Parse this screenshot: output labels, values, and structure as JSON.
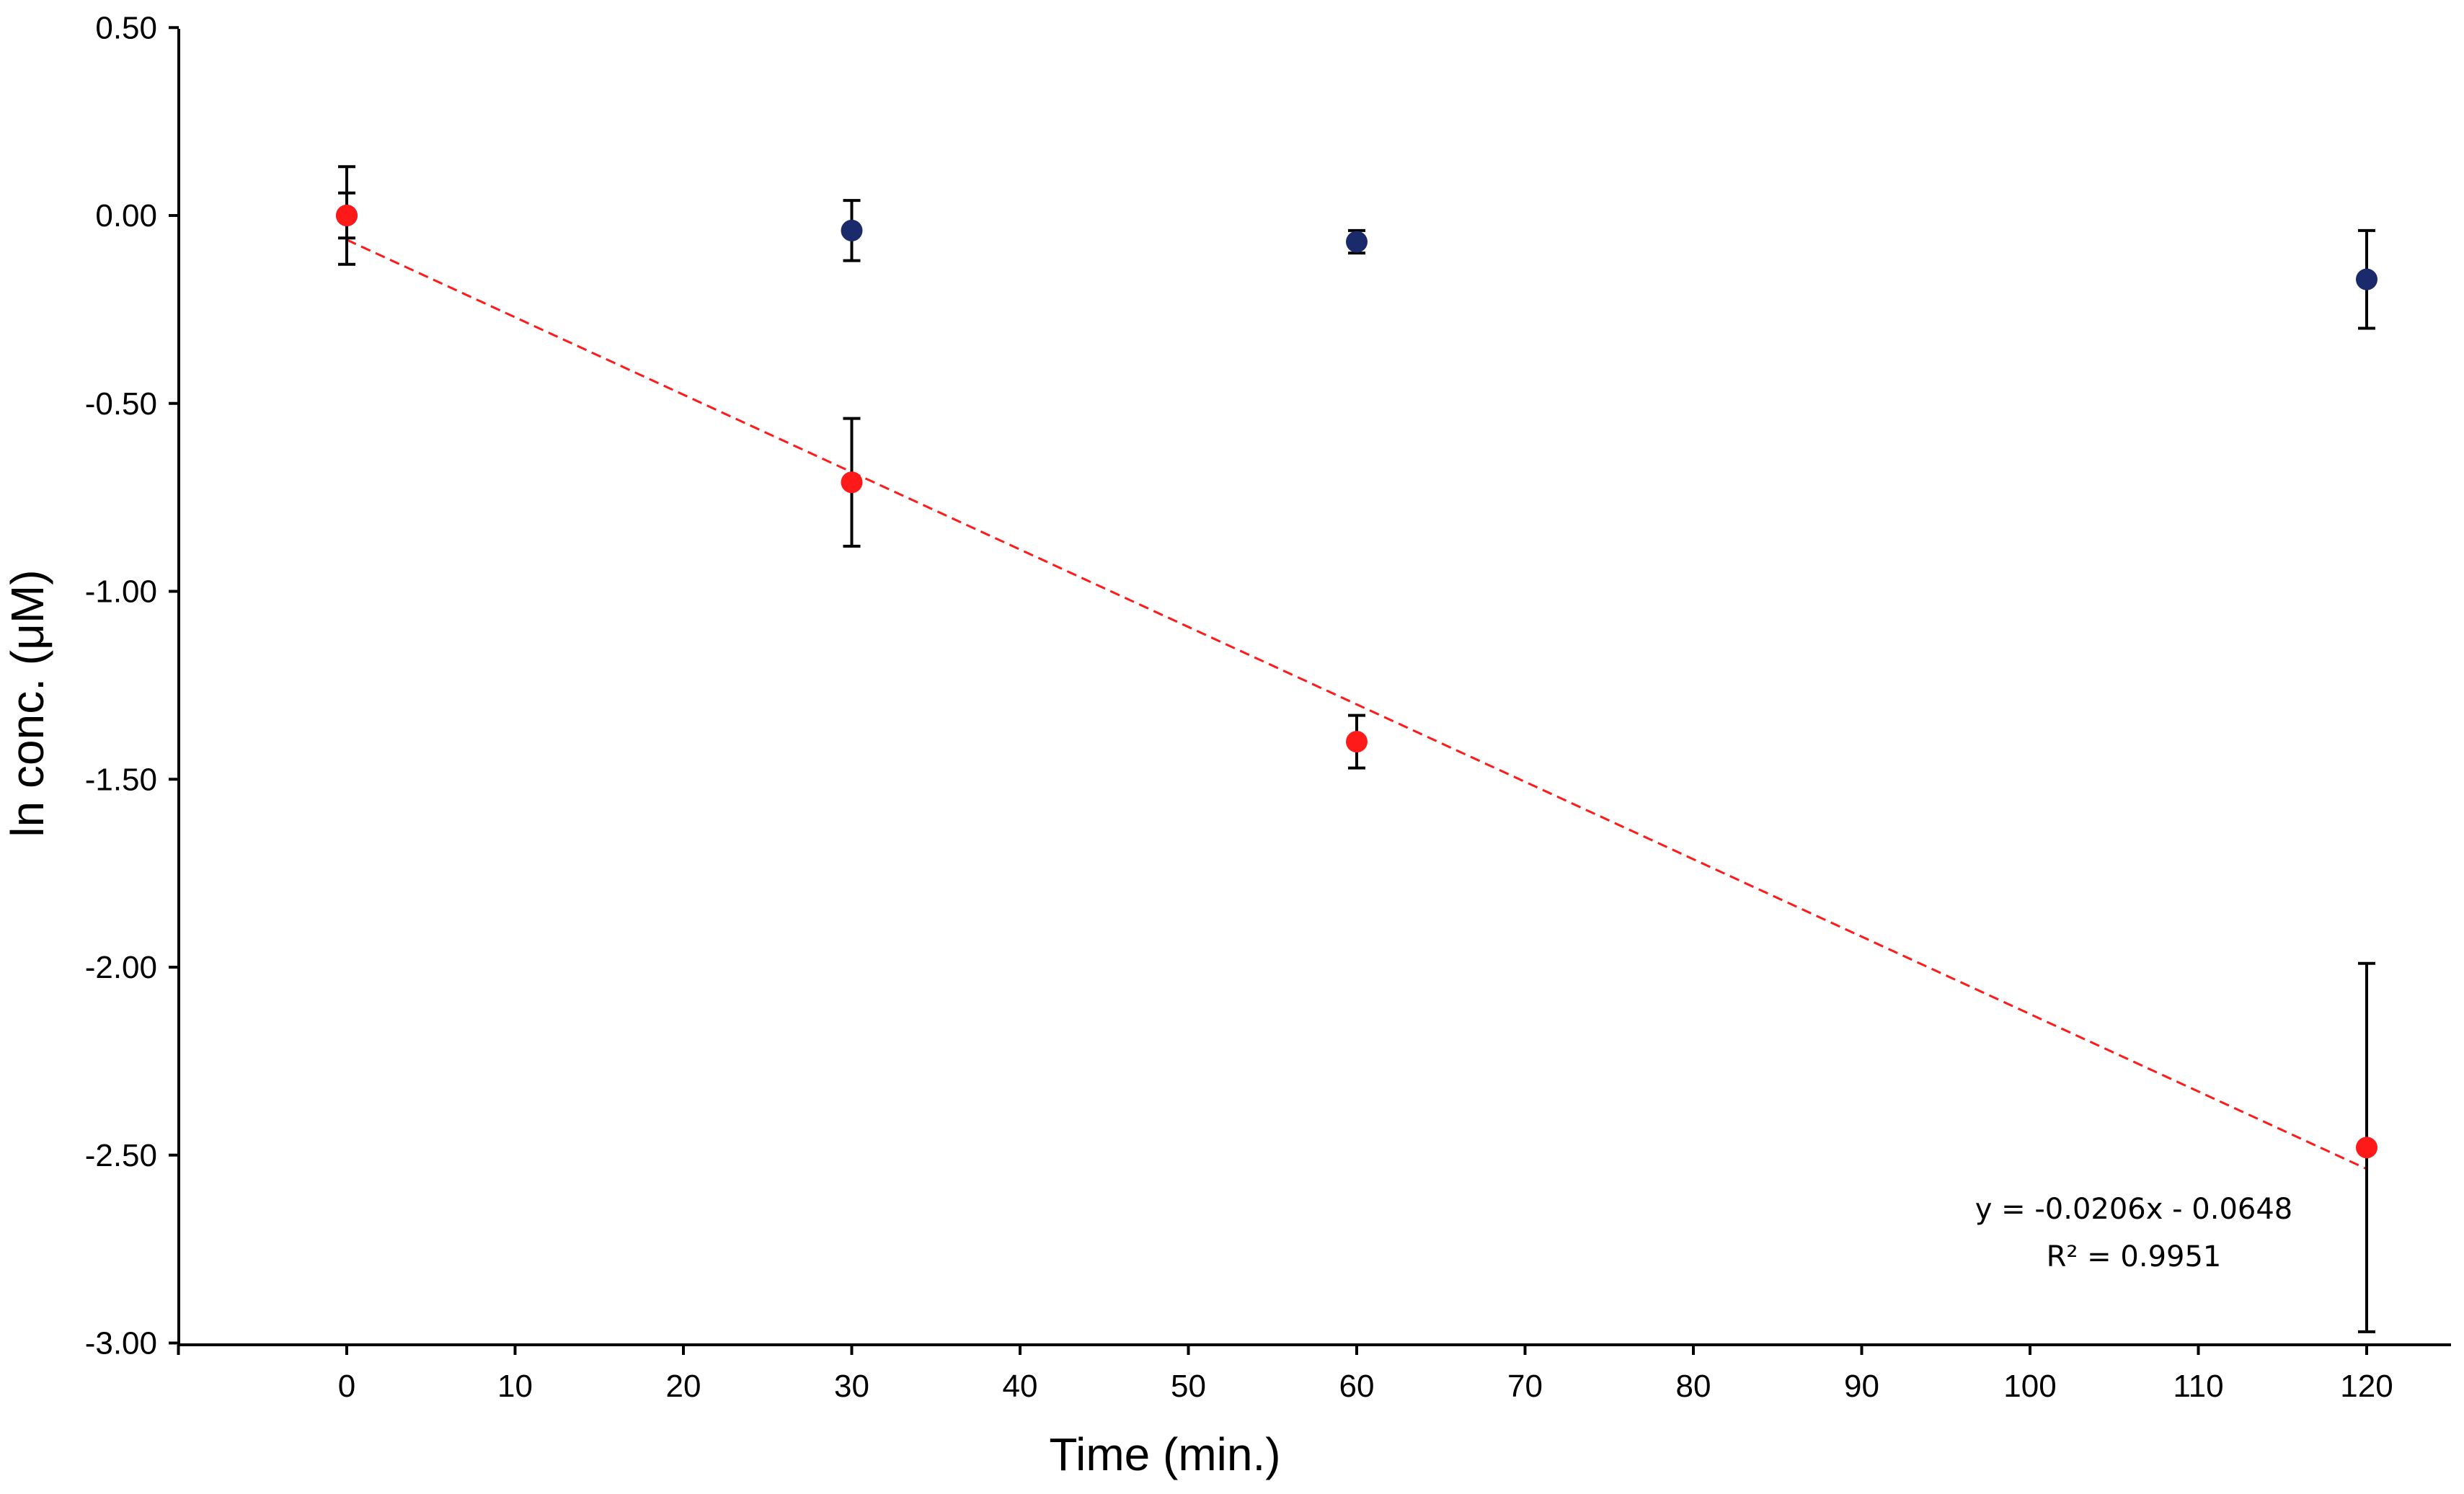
{
  "chart_data": {
    "type": "scatter",
    "title": "",
    "xlabel": "Time (min.)",
    "ylabel": "ln conc. (μM)",
    "xlim": [
      -10,
      125
    ],
    "ylim": [
      -3.0,
      0.5
    ],
    "x_ticks": [
      0,
      10,
      20,
      30,
      40,
      50,
      60,
      70,
      80,
      90,
      100,
      110,
      120
    ],
    "x_tick_labels": [
      "0",
      "10",
      "20",
      "30",
      "40",
      "50",
      "60",
      "70",
      "80",
      "90",
      "100",
      "110",
      "120"
    ],
    "y_ticks": [
      0.5,
      0.0,
      -0.5,
      -1.0,
      -1.5,
      -2.0,
      -2.5,
      -3.0
    ],
    "y_tick_labels": [
      "0.50",
      "0.00",
      "-0.50",
      "-1.00",
      "-1.50",
      "-2.00",
      "-2.50",
      "-3.00"
    ],
    "grid": false,
    "legend": "none",
    "series": [
      {
        "color": "#1b2a6b",
        "x": [
          0,
          30,
          60,
          120
        ],
        "y": [
          0.0,
          -0.04,
          -0.07,
          -0.17
        ],
        "error": [
          0.13,
          0.08,
          0.03,
          0.13
        ]
      },
      {
        "color": "#ff1a1a",
        "x": [
          0,
          30,
          60,
          120
        ],
        "y": [
          0.0,
          -0.71,
          -1.4,
          -2.48
        ],
        "error": [
          0.06,
          0.17,
          0.07,
          0.49
        ]
      }
    ],
    "trendline": {
      "color": "#ff1a1a",
      "slope": -0.0206,
      "intercept": -0.0648,
      "x_range": [
        0,
        120
      ],
      "equation": "y = -0.0206x - 0.0648",
      "r_squared": "R² = 0.9951"
    }
  }
}
